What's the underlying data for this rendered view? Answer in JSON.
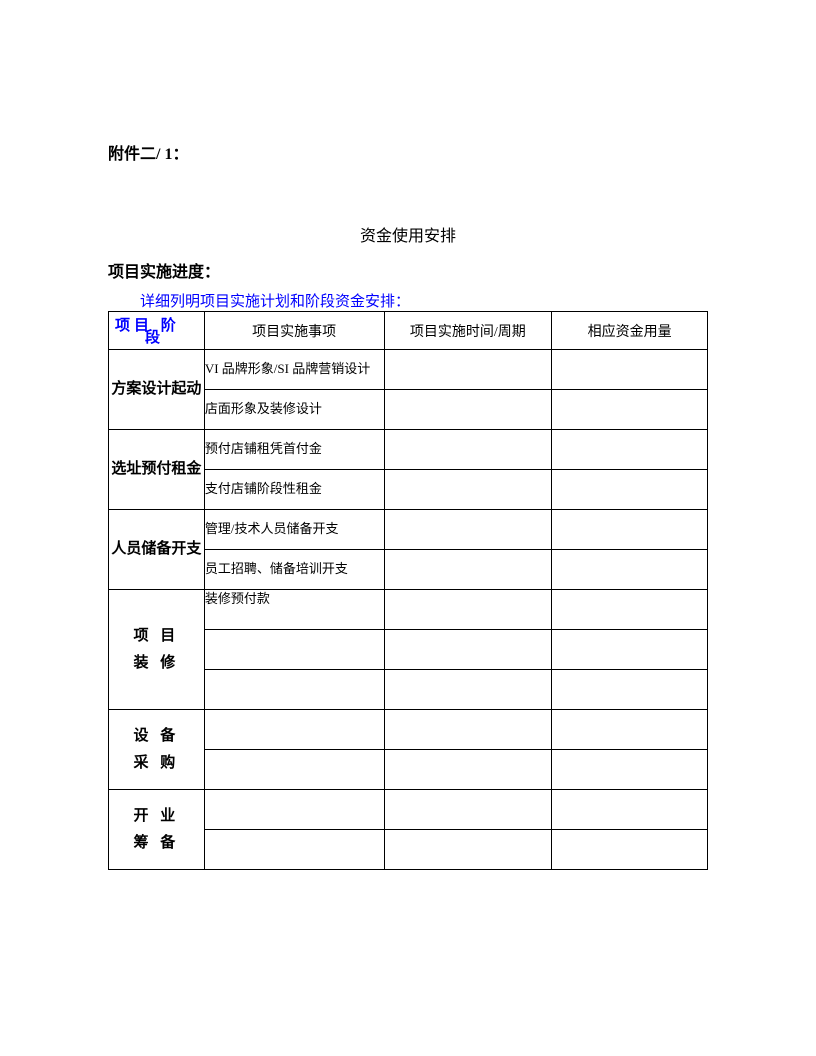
{
  "header": "附件二/ 1：",
  "title": "资金使用安排",
  "subtitle": "项目实施进度：",
  "instruction": "详细列明项目实施计划和阶段资金安排：",
  "colors": {
    "text": "#000000",
    "highlight": "#0000ff",
    "border": "#000000",
    "background": "#ffffff"
  },
  "table": {
    "headers": {
      "stage_top": "项目 阶",
      "stage_bottom": "段",
      "item": "项目实施事项",
      "time": "项目实施时间/周期",
      "amount": "相应资金用量"
    },
    "stages": [
      {
        "name": "方案设计起动",
        "spaced": false,
        "rows": [
          {
            "item": "VI 品牌形象/SI 品牌营销设计",
            "time": "",
            "amount": ""
          },
          {
            "item": "店面形象及装修设计",
            "time": "",
            "amount": ""
          }
        ]
      },
      {
        "name": "选址预付租金",
        "spaced": false,
        "rows": [
          {
            "item": "预付店铺租凭首付金",
            "time": "",
            "amount": ""
          },
          {
            "item": "支付店铺阶段性租金",
            "time": "",
            "amount": ""
          }
        ]
      },
      {
        "name": "人员储备开支",
        "spaced": false,
        "rows": [
          {
            "item": "管理/技术人员储备开支",
            "time": "",
            "amount": ""
          },
          {
            "item": "员工招聘、储备培训开支",
            "time": "",
            "amount": ""
          }
        ]
      },
      {
        "name": "项 目\n装 修",
        "spaced": true,
        "rows": [
          {
            "item": "装修预付款",
            "time": "",
            "amount": "",
            "valign_top": true
          },
          {
            "item": "",
            "time": "",
            "amount": ""
          },
          {
            "item": "",
            "time": "",
            "amount": ""
          }
        ]
      },
      {
        "name": "设 备\n采 购",
        "spaced": true,
        "rows": [
          {
            "item": "",
            "time": "",
            "amount": ""
          },
          {
            "item": "",
            "time": "",
            "amount": ""
          }
        ]
      },
      {
        "name": "开 业\n筹 备",
        "spaced": true,
        "rows": [
          {
            "item": "",
            "time": "",
            "amount": ""
          },
          {
            "item": "",
            "time": "",
            "amount": ""
          }
        ]
      }
    ]
  }
}
